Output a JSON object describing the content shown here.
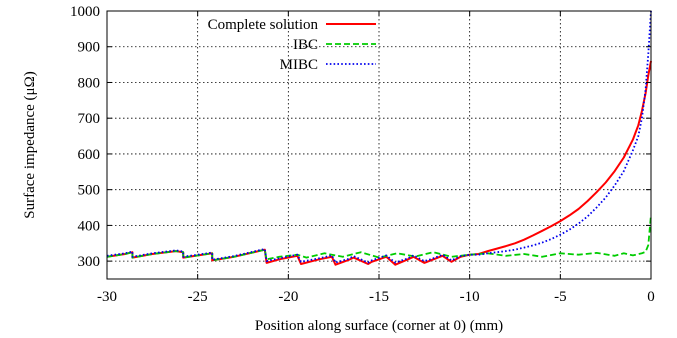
{
  "chart_data": {
    "type": "line",
    "xlabel": "Position along surface (corner at 0) (mm)",
    "ylabel": "Surface impedance (μΩ)",
    "xlim": [
      -30,
      0
    ],
    "ylim": [
      250,
      1000
    ],
    "xticks": [
      -30,
      -25,
      -20,
      -15,
      -10,
      -5,
      0
    ],
    "yticks": [
      300,
      400,
      500,
      600,
      700,
      800,
      900,
      1000
    ],
    "grid": true,
    "legend_position": "top-left",
    "series": [
      {
        "name": "Complete solution",
        "color": "#ff0000",
        "dash": "solid",
        "x": [
          -30,
          -29,
          -28.6,
          -28.6,
          -27.5,
          -26.2,
          -25.8,
          -25.8,
          -24.2,
          -24.2,
          -23,
          -21.3,
          -21.2,
          -20.5,
          -19.5,
          -19.3,
          -18.3,
          -17.6,
          -17.4,
          -16.7,
          -16.4,
          -15.6,
          -15.4,
          -14.6,
          -14.1,
          -13.4,
          -13.1,
          -12.5,
          -12.1,
          -11.5,
          -11,
          -10.5,
          -10,
          -9.5,
          -9,
          -8.5,
          -8,
          -7.5,
          -7,
          -6.5,
          -6,
          -5.5,
          -5,
          -4.5,
          -4,
          -3.5,
          -3,
          -2.5,
          -2,
          -1.5,
          -1,
          -0.7,
          -0.5,
          -0.3,
          -0.15,
          0
        ],
        "y": [
          312,
          320,
          325,
          310,
          320,
          328,
          325,
          310,
          322,
          302,
          312,
          332,
          295,
          305,
          315,
          292,
          305,
          312,
          290,
          303,
          310,
          292,
          298,
          312,
          290,
          305,
          312,
          295,
          303,
          315,
          298,
          312,
          318,
          320,
          328,
          335,
          342,
          350,
          360,
          372,
          385,
          398,
          412,
          428,
          446,
          468,
          493,
          520,
          552,
          590,
          640,
          680,
          720,
          770,
          820,
          860
        ]
      },
      {
        "name": "IBC",
        "color": "#00cc00",
        "dash": "dashed",
        "x": [
          -30,
          -29,
          -28.6,
          -28.6,
          -27.5,
          -26.2,
          -25.8,
          -25.8,
          -24.2,
          -24.2,
          -23,
          -21.3,
          -21.2,
          -20.5,
          -19.5,
          -19,
          -18,
          -17,
          -16,
          -15,
          -14,
          -13,
          -12,
          -11,
          -10,
          -9,
          -8,
          -7,
          -6,
          -5,
          -4,
          -3,
          -2,
          -1.5,
          -1,
          -0.5,
          -0.3,
          -0.15,
          0
        ],
        "y": [
          312,
          320,
          325,
          310,
          320,
          328,
          325,
          310,
          322,
          302,
          312,
          332,
          305,
          312,
          318,
          310,
          322,
          312,
          325,
          310,
          322,
          313,
          325,
          312,
          318,
          322,
          315,
          320,
          312,
          322,
          318,
          323,
          315,
          322,
          316,
          322,
          326,
          345,
          430
        ]
      },
      {
        "name": "MIBC",
        "color": "#0000ee",
        "dash": "dotted",
        "x": [
          -30,
          -29,
          -28.6,
          -28.6,
          -27.5,
          -26.2,
          -25.8,
          -25.8,
          -24.2,
          -24.2,
          -23,
          -21.3,
          -21.2,
          -20.5,
          -19.5,
          -19.3,
          -18.3,
          -17.6,
          -17.4,
          -16.7,
          -16.4,
          -15.6,
          -15.4,
          -14.6,
          -14.1,
          -13.4,
          -13.1,
          -12.5,
          -12.1,
          -11.5,
          -11,
          -10.5,
          -10,
          -9.5,
          -9,
          -8.5,
          -8,
          -7.5,
          -7,
          -6.5,
          -6,
          -5.5,
          -5,
          -4.5,
          -4,
          -3.5,
          -3,
          -2.5,
          -2,
          -1.5,
          -1,
          -0.7,
          -0.5,
          -0.3,
          -0.15,
          0
        ],
        "y": [
          315,
          322,
          327,
          312,
          322,
          330,
          327,
          312,
          324,
          304,
          314,
          334,
          300,
          308,
          318,
          298,
          308,
          316,
          296,
          306,
          314,
          296,
          302,
          316,
          296,
          308,
          316,
          300,
          306,
          318,
          302,
          314,
          318,
          318,
          322,
          325,
          328,
          332,
          338,
          344,
          352,
          362,
          374,
          388,
          405,
          425,
          450,
          478,
          512,
          552,
          610,
          650,
          700,
          780,
          880,
          1000
        ]
      }
    ]
  }
}
